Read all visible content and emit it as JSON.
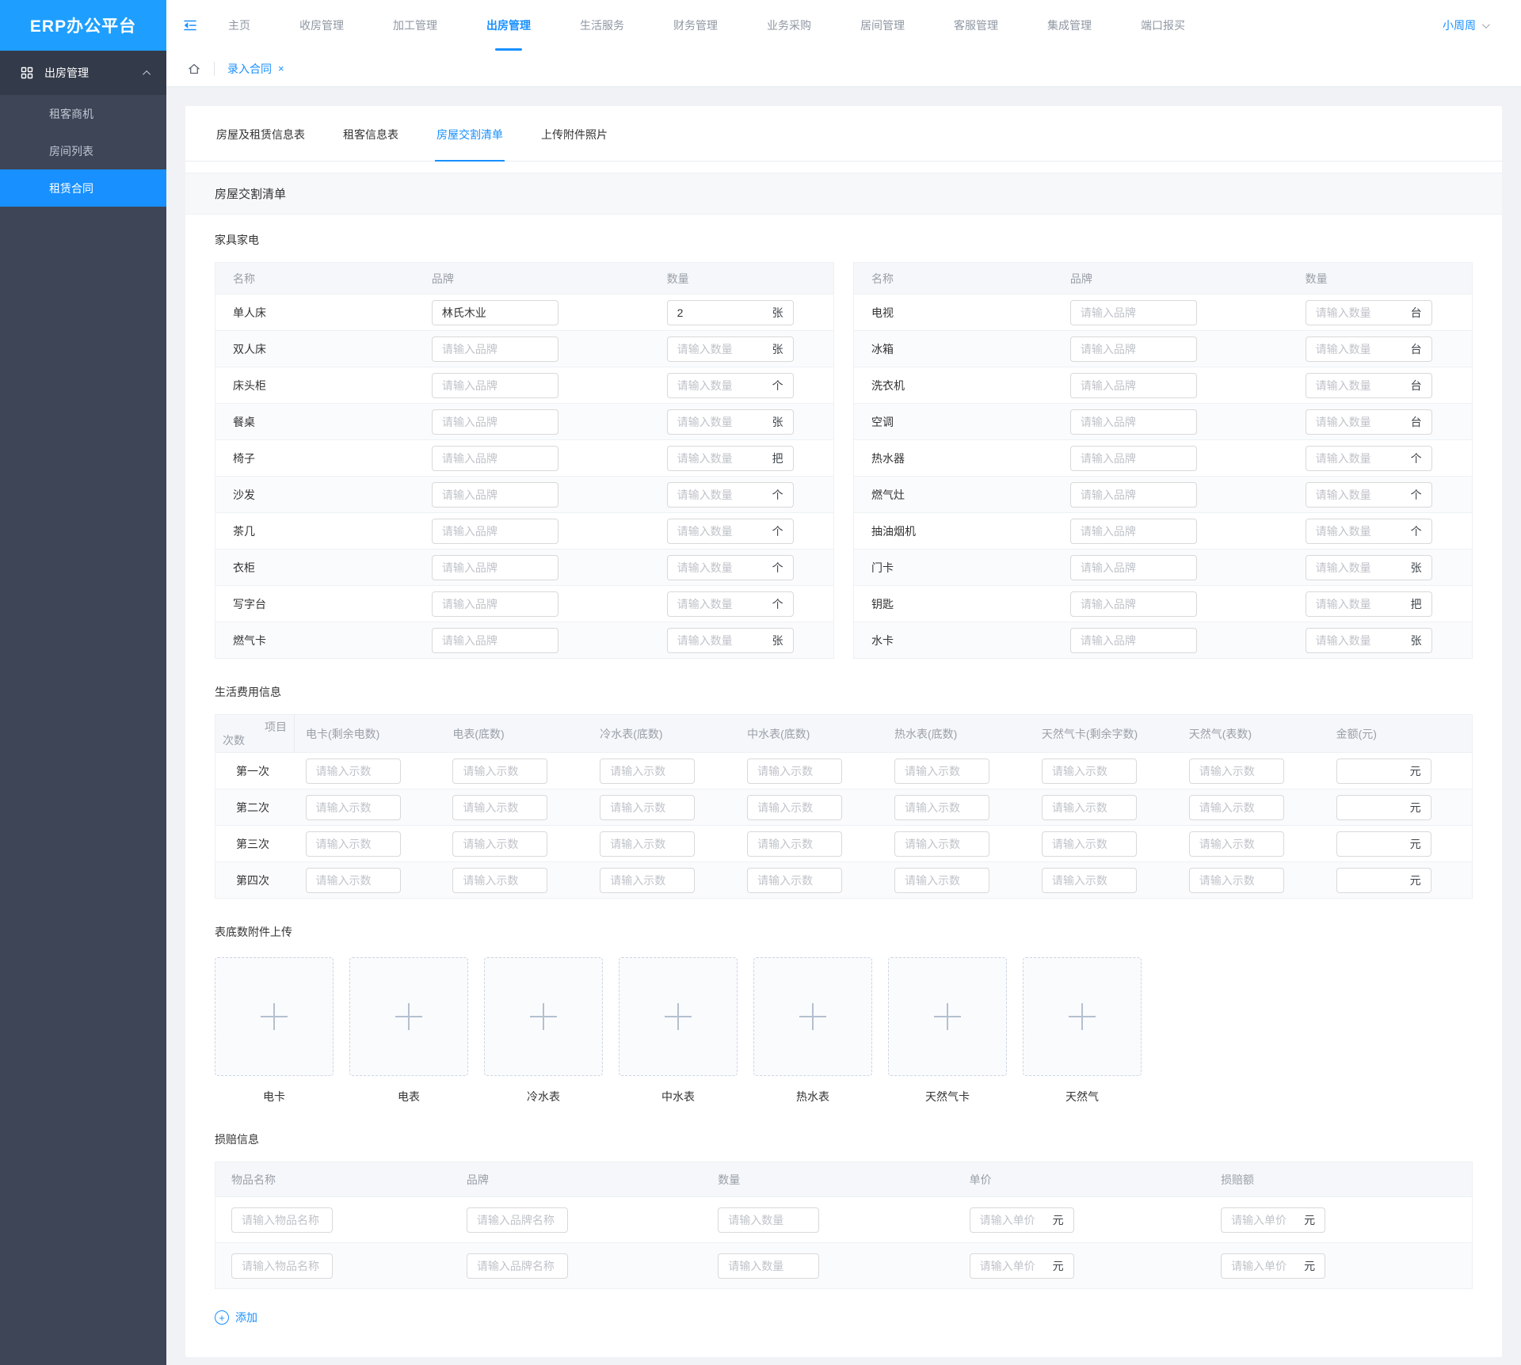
{
  "colors": {
    "accent": "#1890ff",
    "logo_bg": "#1e9fff",
    "sidebar_bg": "#3e4557",
    "sidebar_group_bg": "#333a49",
    "page_bg": "#f0f2f5"
  },
  "header": {
    "logo": "ERP办公平台",
    "nav_items": [
      "主页",
      "收房管理",
      "加工管理",
      "出房管理",
      "生活服务",
      "财务管理",
      "业务采购",
      "居间管理",
      "客服管理",
      "集成管理",
      "端口报买"
    ],
    "active_nav": "出房管理",
    "user": "小周周"
  },
  "sidebar": {
    "group_label": "出房管理",
    "items": [
      {
        "label": "租客商机",
        "active": false
      },
      {
        "label": "房间列表",
        "active": false
      },
      {
        "label": "租赁合同",
        "active": true
      }
    ]
  },
  "breadcrumb": {
    "tab_label": "录入合同",
    "close": "×"
  },
  "tabs": [
    {
      "label": "房屋及租赁信息表",
      "active": false
    },
    {
      "label": "租客信息表",
      "active": false
    },
    {
      "label": "房屋交割清单",
      "active": true
    },
    {
      "label": "上传附件照片",
      "active": false
    }
  ],
  "section_title": "房屋交割清单",
  "furniture": {
    "heading": "家具家电",
    "columns": [
      "名称",
      "品牌",
      "数量"
    ],
    "brand_placeholder": "请输入品牌",
    "qty_placeholder": "请输入数量",
    "left_rows": [
      {
        "name": "单人床",
        "brand": "林氏木业",
        "qty": "2",
        "unit": "张"
      },
      {
        "name": "双人床",
        "brand": "",
        "qty": "",
        "unit": "张"
      },
      {
        "name": "床头柜",
        "brand": "",
        "qty": "",
        "unit": "个"
      },
      {
        "name": "餐桌",
        "brand": "",
        "qty": "",
        "unit": "张"
      },
      {
        "name": "椅子",
        "brand": "",
        "qty": "",
        "unit": "把"
      },
      {
        "name": "沙发",
        "brand": "",
        "qty": "",
        "unit": "个"
      },
      {
        "name": "茶几",
        "brand": "",
        "qty": "",
        "unit": "个"
      },
      {
        "name": "衣柜",
        "brand": "",
        "qty": "",
        "unit": "个"
      },
      {
        "name": "写字台",
        "brand": "",
        "qty": "",
        "unit": "个"
      },
      {
        "name": "燃气卡",
        "brand": "",
        "qty": "",
        "unit": "张"
      }
    ],
    "right_rows": [
      {
        "name": "电视",
        "brand": "",
        "qty": "",
        "unit": "台"
      },
      {
        "name": "冰箱",
        "brand": "",
        "qty": "",
        "unit": "台"
      },
      {
        "name": "洗衣机",
        "brand": "",
        "qty": "",
        "unit": "台"
      },
      {
        "name": "空调",
        "brand": "",
        "qty": "",
        "unit": "台"
      },
      {
        "name": "热水器",
        "brand": "",
        "qty": "",
        "unit": "个"
      },
      {
        "name": "燃气灶",
        "brand": "",
        "qty": "",
        "unit": "个"
      },
      {
        "name": "抽油烟机",
        "brand": "",
        "qty": "",
        "unit": "个"
      },
      {
        "name": "门卡",
        "brand": "",
        "qty": "",
        "unit": "张"
      },
      {
        "name": "钥匙",
        "brand": "",
        "qty": "",
        "unit": "把"
      },
      {
        "name": "水卡",
        "brand": "",
        "qty": "",
        "unit": "张"
      }
    ]
  },
  "living": {
    "heading": "生活费用信息",
    "corner_top": "项目",
    "corner_bottom": "次数",
    "columns": [
      "电卡(剩余电数)",
      "电表(底数)",
      "冷水表(底数)",
      "中水表(底数)",
      "热水表(底数)",
      "天然气卡(剩余字数)",
      "天然气(表数)",
      "金额(元)"
    ],
    "rows": [
      "第一次",
      "第二次",
      "第三次",
      "第四次"
    ],
    "reading_placeholder": "请输入示数",
    "amount_unit": "元"
  },
  "uploads": {
    "heading": "表底数附件上传",
    "items": [
      "电卡",
      "电表",
      "冷水表",
      "中水表",
      "热水表",
      "天然气卡",
      "天然气"
    ]
  },
  "damage": {
    "heading": "损赔信息",
    "columns": [
      "物品名称",
      "品牌",
      "数量",
      "单价",
      "损赔额"
    ],
    "row_count": 2,
    "placeholders": {
      "name": "请输入物品名称",
      "brand": "请输入品牌名称",
      "qty": "请输入数量",
      "price": "请输入单价",
      "damage": "请输入单价"
    },
    "unit": "元",
    "add_label": "添加"
  }
}
